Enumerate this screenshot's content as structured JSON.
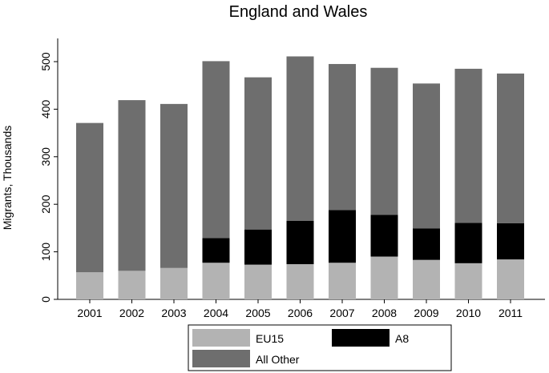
{
  "chart_data": {
    "type": "bar",
    "stacked": true,
    "title": "England and Wales",
    "xlabel": "",
    "ylabel": "Migrants, Thousands",
    "ylim": [
      0,
      550
    ],
    "yticks": [
      0,
      100,
      200,
      300,
      400,
      500
    ],
    "grid": false,
    "legend_position": "bottom",
    "categories": [
      "2001",
      "2002",
      "2003",
      "2004",
      "2005",
      "2006",
      "2007",
      "2008",
      "2009",
      "2010",
      "2011"
    ],
    "series": [
      {
        "name": "EU15",
        "color": "#b3b3b3",
        "values": [
          57,
          60,
          66,
          77,
          73,
          74,
          77,
          90,
          83,
          76,
          84
        ]
      },
      {
        "name": "A8",
        "color": "#000000",
        "values": [
          0,
          0,
          0,
          52,
          74,
          91,
          111,
          88,
          66,
          85,
          76
        ]
      },
      {
        "name": "All Other",
        "color": "#6e6e6e",
        "values": [
          314,
          359,
          345,
          372,
          320,
          346,
          307,
          309,
          305,
          324,
          315
        ]
      }
    ]
  }
}
